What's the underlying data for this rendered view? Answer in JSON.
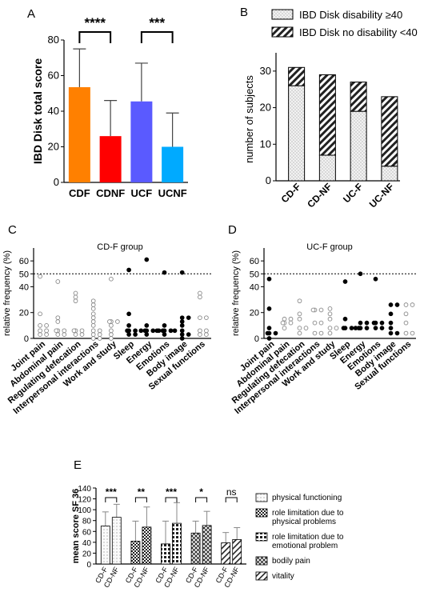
{
  "panel_labels": {
    "A": "A",
    "B": "B",
    "C": "C",
    "D": "D",
    "E": "E"
  },
  "chart_data": [
    {
      "id": "A",
      "type": "bar",
      "ylabel": "IBD Disk total score",
      "ylim": [
        0,
        80
      ],
      "yticks": [
        0,
        20,
        40,
        60,
        80
      ],
      "categories": [
        "CDF",
        "CDNF",
        "UCF",
        "UCNF"
      ],
      "values": [
        53.5,
        26,
        45.5,
        20
      ],
      "errors": [
        21.5,
        20,
        21.5,
        19
      ],
      "colors": [
        "#ff8000",
        "#ff0000",
        "#5a5aff",
        "#00aaff"
      ],
      "significance": [
        {
          "from": "CDF",
          "to": "CDNF",
          "label": "****"
        },
        {
          "from": "UCF",
          "to": "UCNF",
          "label": "***"
        }
      ]
    },
    {
      "id": "B",
      "type": "bar",
      "stacked": true,
      "ylabel": "number of subjects",
      "ylim": [
        0,
        35
      ],
      "yticks": [
        0,
        10,
        20,
        30
      ],
      "categories": [
        "CD-F",
        "CD-NF",
        "UC-F",
        "UC-NF"
      ],
      "series": [
        {
          "name": "IBD Disk disability ≥40",
          "values": [
            26,
            7,
            19,
            4
          ],
          "pattern": "dots"
        },
        {
          "name": "IBD Disk no disability <40",
          "values": [
            5,
            22,
            8,
            19
          ],
          "pattern": "stripes"
        }
      ],
      "legend_position": "top"
    },
    {
      "id": "C",
      "type": "scatter",
      "title": "CD-F group",
      "ylabel": "relative frequency (%)",
      "ylim": [
        0,
        70
      ],
      "yticks": [
        0,
        20,
        40,
        50,
        60
      ],
      "reference_line": 50,
      "categories": [
        "Joint pain",
        "Abdominal pain",
        "Regulating defecation",
        "Interpersonal interactions",
        "Work and study",
        "Sleep",
        "Energy",
        "Emotions",
        "Body image",
        "Sexual functions"
      ],
      "filled_categories": [
        "Sleep",
        "Energy",
        "Emotions",
        "Body image"
      ],
      "points": [
        [
          48,
          19,
          10,
          10,
          6,
          6,
          3,
          3
        ],
        [
          44,
          16,
          13,
          6,
          6,
          6,
          3,
          3
        ],
        [
          35,
          32,
          29,
          6,
          6,
          6,
          3,
          3
        ],
        [
          29,
          26,
          23,
          19,
          16,
          13,
          10,
          6,
          6,
          3,
          3,
          0,
          0
        ],
        [
          46,
          13,
          13,
          13,
          10,
          6,
          3,
          0
        ],
        [
          53,
          19,
          10,
          6,
          6,
          6,
          3,
          3
        ],
        [
          61,
          10,
          6,
          6,
          6,
          6,
          6,
          3
        ],
        [
          51,
          10,
          6,
          6,
          6,
          6,
          6,
          3
        ],
        [
          51,
          16,
          16,
          13,
          10,
          6,
          3,
          3,
          0
        ],
        [
          35,
          32,
          16,
          16,
          6,
          6,
          3,
          3
        ]
      ]
    },
    {
      "id": "D",
      "type": "scatter",
      "title": "UC-F group",
      "ylabel": "relative frequency (%)",
      "ylim": [
        0,
        70
      ],
      "yticks": [
        0,
        20,
        40,
        50,
        60
      ],
      "reference_line": 50,
      "categories": [
        "Joint pain",
        "Abdominal pain",
        "Regulating defecation",
        "Interpersonal interactions",
        "Work and study",
        "Sleep",
        "Energy",
        "Emotions",
        "Body image",
        "Sexual functions"
      ],
      "filled_categories": [
        "Joint pain",
        "Sleep",
        "Energy",
        "Emotions",
        "Body image"
      ],
      "points": [
        [
          46,
          23,
          8,
          4,
          4,
          4,
          0
        ],
        [
          15,
          15,
          12,
          12,
          12,
          8
        ],
        [
          29,
          19,
          15,
          8,
          8,
          4
        ],
        [
          22,
          22,
          22,
          12,
          12,
          4,
          4
        ],
        [
          23,
          19,
          15,
          8,
          8,
          4
        ],
        [
          44,
          15,
          8,
          8,
          8,
          8
        ],
        [
          50,
          12,
          12,
          8,
          8,
          8
        ],
        [
          46,
          12,
          12,
          12,
          8,
          8
        ],
        [
          26,
          26,
          19,
          12,
          8,
          4,
          4
        ],
        [
          26,
          26,
          19,
          12,
          4,
          4
        ]
      ]
    },
    {
      "id": "E",
      "type": "bar",
      "ylabel": "mean score SF 36",
      "ylim": [
        0,
        140
      ],
      "yticks": [
        0,
        20,
        40,
        60,
        80,
        100,
        120,
        140
      ],
      "group_labels": [
        "CD-F",
        "CD-NF"
      ],
      "series": [
        {
          "name": "physical functioning",
          "values": [
            70,
            86
          ],
          "errors": [
            26,
            24
          ],
          "pattern": "hatch-dots",
          "significance": "***"
        },
        {
          "name": "role limitation due to physical problems",
          "values": [
            42,
            68
          ],
          "errors": [
            37,
            37
          ],
          "pattern": "checker",
          "significance": "**"
        },
        {
          "name": "role limitation due to emotional problem",
          "values": [
            37,
            75
          ],
          "errors": [
            42,
            38
          ],
          "pattern": "grid",
          "significance": "***"
        },
        {
          "name": "bodily pain",
          "values": [
            57,
            71
          ],
          "errors": [
            22,
            26
          ],
          "pattern": "cross",
          "significance": "*"
        },
        {
          "name": "vitality",
          "values": [
            39,
            45
          ],
          "errors": [
            19,
            22
          ],
          "pattern": "diagonal",
          "significance": "ns"
        }
      ]
    }
  ]
}
